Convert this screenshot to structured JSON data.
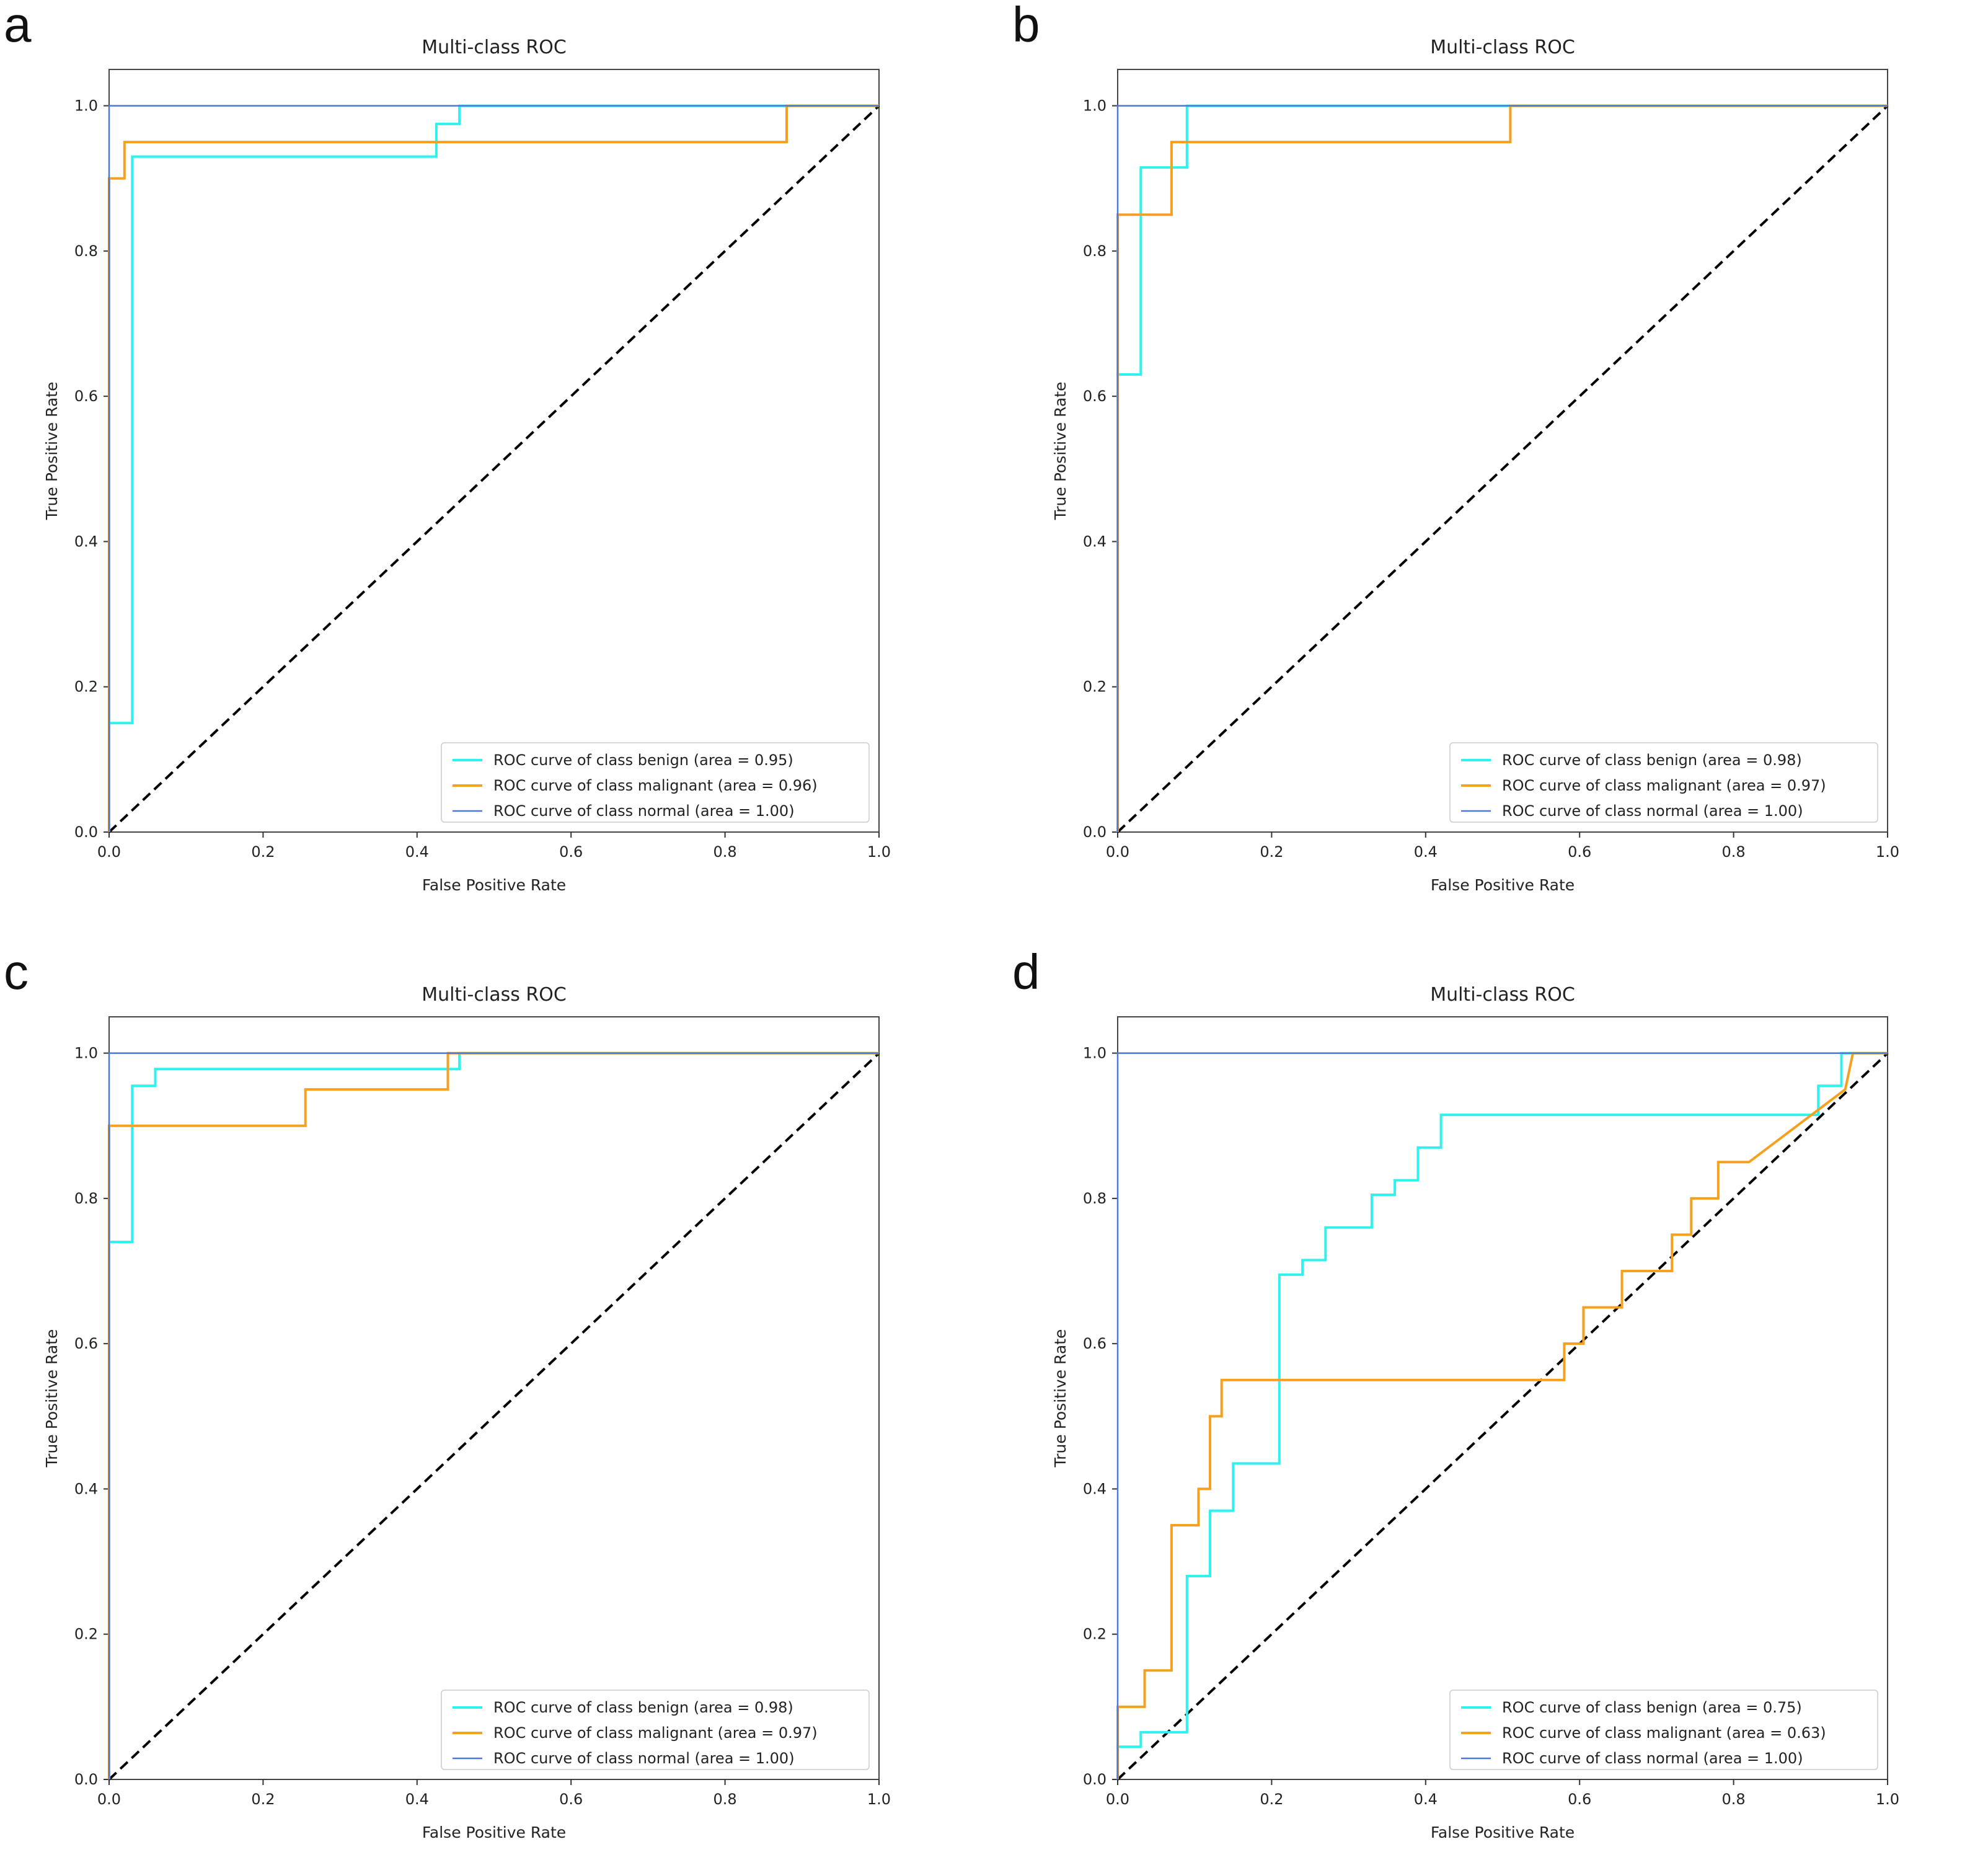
{
  "colors": {
    "benign": "#2ff2ee",
    "malignant": "#f5a01f",
    "normal": "#4c78dd",
    "chance": "#000000",
    "frame": "#444444"
  },
  "chart_data": [
    {
      "panel_label": "a",
      "type": "line",
      "title": "Multi-class ROC",
      "xlabel": "False Positive Rate",
      "ylabel": "True Positive Rate",
      "xlim": [
        0.0,
        1.0
      ],
      "ylim": [
        0.0,
        1.05
      ],
      "xticks": [
        "0.0",
        "0.2",
        "0.4",
        "0.6",
        "0.8",
        "1.0"
      ],
      "yticks": [
        "0.0",
        "0.2",
        "0.4",
        "0.6",
        "0.8",
        "1.0"
      ],
      "legend_position": "lower-right",
      "series": [
        {
          "name": "ROC curve of class benign (area = 0.95)",
          "key": "benign",
          "x": [
            0,
            0,
            0.03,
            0.03,
            0.425,
            0.425,
            0.455,
            0.455,
            1.0
          ],
          "y": [
            0,
            0.15,
            0.15,
            0.93,
            0.93,
            0.975,
            0.975,
            1.0,
            1.0
          ]
        },
        {
          "name": "ROC curve of class malignant (area = 0.96)",
          "key": "malignant",
          "x": [
            0,
            0,
            0.02,
            0.02,
            0.88,
            0.88,
            1.0
          ],
          "y": [
            0,
            0.9,
            0.9,
            0.95,
            0.95,
            1.0,
            1.0
          ]
        },
        {
          "name": "ROC curve of class normal (area = 1.00)",
          "key": "normal",
          "x": [
            0,
            0,
            1.0
          ],
          "y": [
            0,
            1.0,
            1.0
          ]
        }
      ]
    },
    {
      "panel_label": "b",
      "type": "line",
      "title": "Multi-class ROC",
      "xlabel": "False Positive Rate",
      "ylabel": "True Positive Rate",
      "xlim": [
        0.0,
        1.0
      ],
      "ylim": [
        0.0,
        1.05
      ],
      "xticks": [
        "0.0",
        "0.2",
        "0.4",
        "0.6",
        "0.8",
        "1.0"
      ],
      "yticks": [
        "0.0",
        "0.2",
        "0.4",
        "0.6",
        "0.8",
        "1.0"
      ],
      "legend_position": "lower-right",
      "series": [
        {
          "name": "ROC curve of class benign (area = 0.98)",
          "key": "benign",
          "x": [
            0,
            0,
            0.03,
            0.03,
            0.09,
            0.09,
            1.0
          ],
          "y": [
            0,
            0.63,
            0.63,
            0.915,
            0.915,
            1.0,
            1.0
          ]
        },
        {
          "name": "ROC curve of class malignant (area = 0.97)",
          "key": "malignant",
          "x": [
            0,
            0,
            0.07,
            0.07,
            0.51,
            0.51,
            1.0
          ],
          "y": [
            0,
            0.85,
            0.85,
            0.95,
            0.95,
            1.0,
            1.0
          ]
        },
        {
          "name": "ROC curve of class normal (area = 1.00)",
          "key": "normal",
          "x": [
            0,
            0,
            1.0
          ],
          "y": [
            0,
            1.0,
            1.0
          ]
        }
      ]
    },
    {
      "panel_label": "c",
      "type": "line",
      "title": "Multi-class ROC",
      "xlabel": "False Positive Rate",
      "ylabel": "True Positive Rate",
      "xlim": [
        0.0,
        1.0
      ],
      "ylim": [
        0.0,
        1.05
      ],
      "xticks": [
        "0.0",
        "0.2",
        "0.4",
        "0.6",
        "0.8",
        "1.0"
      ],
      "yticks": [
        "0.0",
        "0.2",
        "0.4",
        "0.6",
        "0.8",
        "1.0"
      ],
      "legend_position": "lower-right",
      "series": [
        {
          "name": "ROC curve of class benign (area = 0.98)",
          "key": "benign",
          "x": [
            0,
            0,
            0.03,
            0.03,
            0.06,
            0.06,
            0.455,
            0.455,
            1.0
          ],
          "y": [
            0,
            0.74,
            0.74,
            0.955,
            0.955,
            0.978,
            0.978,
            1.0,
            1.0
          ]
        },
        {
          "name": "ROC curve of class malignant (area = 0.97)",
          "key": "malignant",
          "x": [
            0,
            0,
            0.255,
            0.255,
            0.44,
            0.44,
            1.0
          ],
          "y": [
            0,
            0.9,
            0.9,
            0.95,
            0.95,
            1.0,
            1.0
          ]
        },
        {
          "name": "ROC curve of class normal (area = 1.00)",
          "key": "normal",
          "x": [
            0,
            0,
            1.0
          ],
          "y": [
            0,
            1.0,
            1.0
          ]
        }
      ]
    },
    {
      "panel_label": "d",
      "type": "line",
      "title": "Multi-class ROC",
      "xlabel": "False Positive Rate",
      "ylabel": "True Positive Rate",
      "xlim": [
        0.0,
        1.0
      ],
      "ylim": [
        0.0,
        1.05
      ],
      "xticks": [
        "0.0",
        "0.2",
        "0.4",
        "0.6",
        "0.8",
        "1.0"
      ],
      "yticks": [
        "0.0",
        "0.2",
        "0.4",
        "0.6",
        "0.8",
        "1.0"
      ],
      "legend_position": "lower-right",
      "series": [
        {
          "name": "ROC curve of class benign (area = 0.75)",
          "key": "benign",
          "x": [
            0,
            0,
            0.03,
            0.03,
            0.09,
            0.09,
            0.12,
            0.12,
            0.15,
            0.15,
            0.21,
            0.21,
            0.24,
            0.24,
            0.27,
            0.27,
            0.33,
            0.33,
            0.36,
            0.36,
            0.39,
            0.39,
            0.42,
            0.42,
            0.91,
            0.91,
            0.94,
            0.94,
            1.0
          ],
          "y": [
            0,
            0.045,
            0.045,
            0.065,
            0.065,
            0.28,
            0.28,
            0.37,
            0.37,
            0.435,
            0.435,
            0.695,
            0.695,
            0.715,
            0.715,
            0.76,
            0.76,
            0.805,
            0.805,
            0.825,
            0.825,
            0.87,
            0.87,
            0.915,
            0.915,
            0.955,
            0.955,
            1.0,
            1.0
          ]
        },
        {
          "name": "ROC curve of class malignant (area = 0.63)",
          "key": "malignant",
          "x": [
            0,
            0,
            0.035,
            0.035,
            0.07,
            0.07,
            0.105,
            0.105,
            0.12,
            0.12,
            0.135,
            0.135,
            0.58,
            0.58,
            0.605,
            0.605,
            0.655,
            0.655,
            0.72,
            0.72,
            0.745,
            0.745,
            0.78,
            0.78,
            0.82,
            0.82,
            0.945,
            0.945,
            0.955,
            0.955,
            1.0
          ],
          "y": [
            0,
            0.1,
            0.1,
            0.15,
            0.15,
            0.35,
            0.35,
            0.4,
            0.4,
            0.5,
            0.5,
            0.55,
            0.55,
            0.6,
            0.6,
            0.65,
            0.65,
            0.7,
            0.7,
            0.75,
            0.75,
            0.8,
            0.8,
            0.85,
            0.85,
            0.85,
            0.95,
            0.95,
            1.0,
            1.0,
            1.0
          ]
        },
        {
          "name": "ROC curve of class normal (area = 1.00)",
          "key": "normal",
          "x": [
            0,
            0,
            1.0
          ],
          "y": [
            0,
            1.0,
            1.0
          ]
        }
      ]
    }
  ]
}
